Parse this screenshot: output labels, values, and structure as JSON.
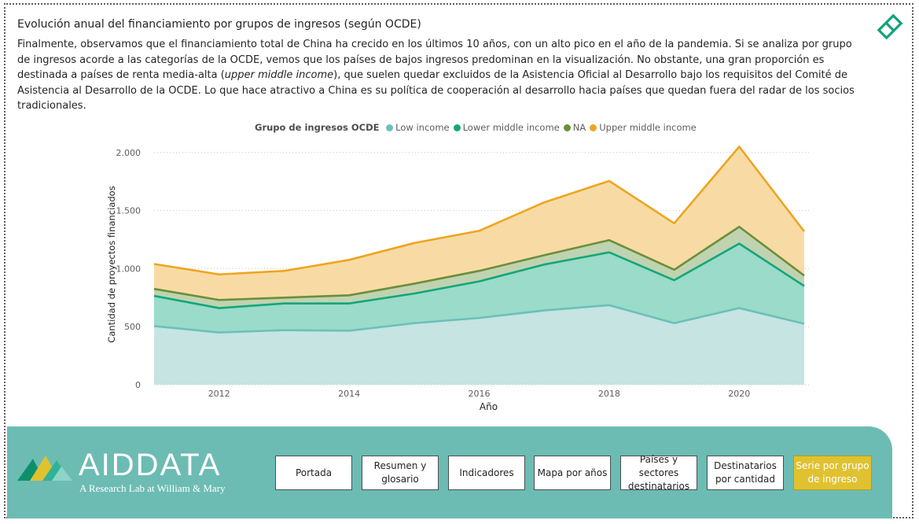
{
  "title": "Evolución anual del financiamiento por grupos de ingresos (según OCDE)",
  "description": {
    "part1": "Finalmente, observamos que el financiamiento total de China ha crecido en los últimos 10 años, con un alto pico en el año de la pandemia. Si se analiza por grupo de ingresos acorde a las categorías de la OCDE, vemos que los países de bajos ingresos predominan en la visualización. No obstante, una gran proporción es destinada a países de renta media-alta (",
    "italic": "upper middle income",
    "part2": "), que suelen quedar excluidos de la Asistencia Oficial al Desarrollo bajo los requisitos del Comité de Asistencia al Desarrollo de la OCDE. Lo que hace atractivo a China es su política de cooperación al desarrollo hacia países que quedan fuera del radar de los socios tradicionales."
  },
  "chart_data": {
    "type": "area",
    "stacked": true,
    "legend_title": "Grupo de ingresos OCDE",
    "legend_position": "top",
    "xlabel": "Año",
    "ylabel": "Cantidad de proyectos financiados",
    "x": [
      2011,
      2012,
      2013,
      2014,
      2015,
      2016,
      2017,
      2018,
      2019,
      2020,
      2021
    ],
    "x_ticks": [
      2012,
      2014,
      2016,
      2018,
      2020
    ],
    "y_ticks": [
      0,
      500,
      1000,
      1500,
      2000
    ],
    "y_tick_labels": [
      "0",
      "500",
      "1.000",
      "1.500",
      "2.000"
    ],
    "ylim": [
      0,
      2100
    ],
    "grid": true,
    "series": [
      {
        "name": "Low income",
        "color": "#6cc0b8",
        "fill": "#c5e4e2",
        "values": [
          505,
          450,
          470,
          465,
          530,
          575,
          640,
          685,
          530,
          660,
          525
        ]
      },
      {
        "name": "Lower middle income",
        "color": "#14a679",
        "fill": "#9adbc9",
        "values": [
          260,
          210,
          230,
          235,
          255,
          315,
          395,
          455,
          370,
          555,
          325
        ]
      },
      {
        "name": "NA",
        "color": "#6a8f3a",
        "fill": "#bfd3b1",
        "values": [
          60,
          70,
          50,
          70,
          85,
          90,
          80,
          105,
          90,
          145,
          90
        ]
      },
      {
        "name": "Upper middle income",
        "color": "#eda520",
        "fill": "#f8dba4",
        "values": [
          215,
          220,
          230,
          305,
          350,
          345,
          455,
          510,
          400,
          690,
          380
        ]
      }
    ]
  },
  "footer": {
    "brand": "AIDDATA",
    "tagline": "A Research Lab at William & Mary",
    "nav": [
      "Portada",
      "Resumen y glosario",
      "Indicadores",
      "Mapa por años",
      "Países y sectores destinatarios",
      "Destinatarios por cantidad",
      "Serie por grupo de ingreso"
    ],
    "active": "Serie por grupo de ingreso"
  },
  "colors": {
    "footer_bg": "#6cbcb4",
    "active_button": "#e0c230",
    "accent_icon": "#12a27a"
  }
}
